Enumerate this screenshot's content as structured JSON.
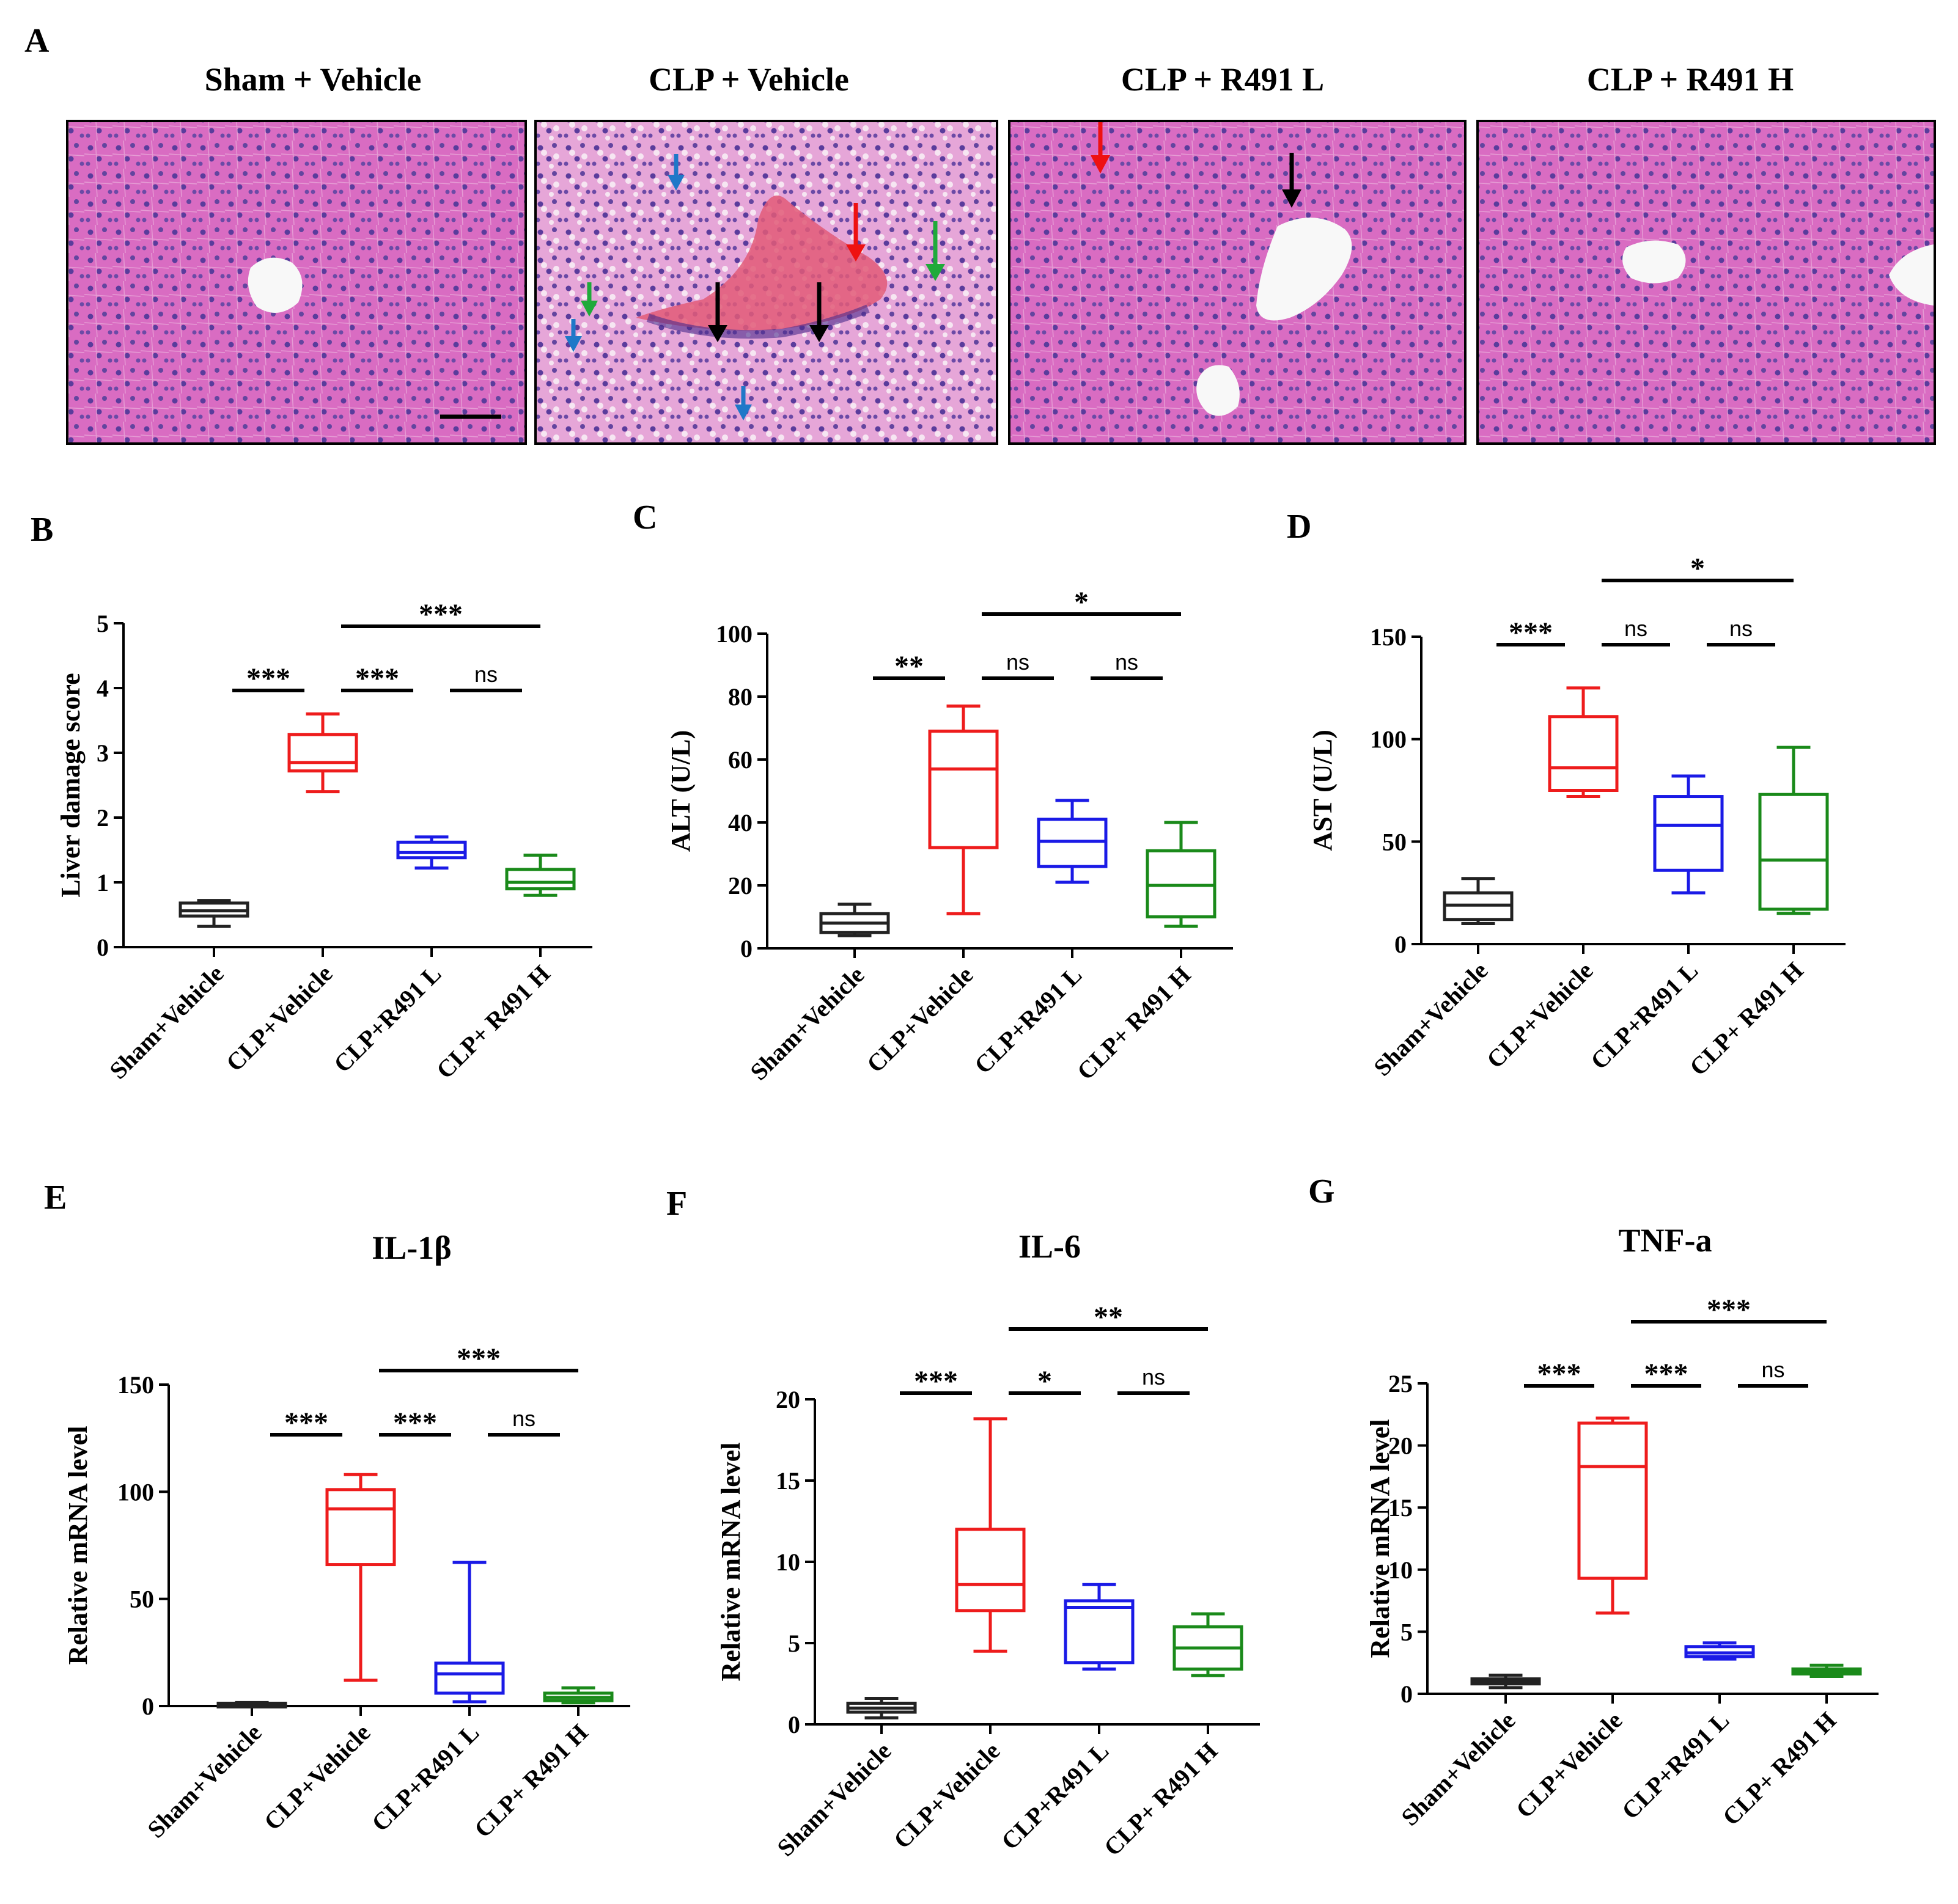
{
  "photos": {
    "letter": "A",
    "titles": [
      "Sham + Vehicle",
      "CLP + Vehicle",
      "CLP + R491 L",
      "CLP + R491 H"
    ]
  },
  "colors": {
    "groups": [
      "#222222",
      "#ee1c1c",
      "#1a1ae6",
      "#1a8a1a"
    ],
    "tissue": "#d86ac0",
    "arrows": {
      "black": "#000000",
      "red": "#ee1111",
      "green": "#1faa3a",
      "blue": "#1f78c8"
    }
  },
  "chart_data": [
    {
      "id": "B",
      "letter": "B",
      "type": "box",
      "title": "",
      "ylabel": "Liver damage score",
      "ylim": [
        0,
        5
      ],
      "yticks": [
        0,
        1,
        2,
        3,
        4,
        5
      ],
      "categories": [
        "Sham+Vehicle",
        "CLP+Vehicle",
        "CLP+R491 L",
        "CLP+ R491 H"
      ],
      "boxes": [
        {
          "min": 0.32,
          "q1": 0.48,
          "median": 0.56,
          "q3": 0.68,
          "max": 0.72
        },
        {
          "min": 2.4,
          "q1": 2.72,
          "median": 2.85,
          "q3": 3.28,
          "max": 3.6
        },
        {
          "min": 1.22,
          "q1": 1.38,
          "median": 1.46,
          "q3": 1.62,
          "max": 1.7
        },
        {
          "min": 0.8,
          "q1": 0.9,
          "median": 1.0,
          "q3": 1.2,
          "max": 1.42
        }
      ],
      "significance": [
        {
          "from": 0,
          "to": 1,
          "label": "***"
        },
        {
          "from": 1,
          "to": 2,
          "label": "***"
        },
        {
          "from": 2,
          "to": 3,
          "label": "ns"
        },
        {
          "from": 1,
          "to": 3,
          "label": "***"
        }
      ]
    },
    {
      "id": "C",
      "letter": "C",
      "type": "box",
      "title": "",
      "ylabel": "ALT (U/L)",
      "ylim": [
        0,
        100
      ],
      "yticks": [
        0,
        20,
        40,
        60,
        80,
        100
      ],
      "categories": [
        "Sham+Vehicle",
        "CLP+Vehicle",
        "CLP+R491 L",
        "CLP+ R491 H"
      ],
      "boxes": [
        {
          "min": 4,
          "q1": 5,
          "median": 8,
          "q3": 11,
          "max": 14
        },
        {
          "min": 11,
          "q1": 32,
          "median": 57,
          "q3": 69,
          "max": 77
        },
        {
          "min": 21,
          "q1": 26,
          "median": 34,
          "q3": 41,
          "max": 47
        },
        {
          "min": 7,
          "q1": 10,
          "median": 20,
          "q3": 31,
          "max": 40
        }
      ],
      "significance": [
        {
          "from": 0,
          "to": 1,
          "label": "**"
        },
        {
          "from": 1,
          "to": 2,
          "label": "ns"
        },
        {
          "from": 2,
          "to": 3,
          "label": "ns"
        },
        {
          "from": 1,
          "to": 3,
          "label": "*"
        }
      ]
    },
    {
      "id": "D",
      "letter": "D",
      "type": "box",
      "title": "",
      "ylabel": "AST (U/L)",
      "ylim": [
        0,
        150
      ],
      "yticks": [
        0,
        50,
        100,
        150
      ],
      "categories": [
        "Sham+Vehicle",
        "CLP+Vehicle",
        "CLP+R491 L",
        "CLP+ R491 H"
      ],
      "boxes": [
        {
          "min": 10,
          "q1": 12,
          "median": 19,
          "q3": 25,
          "max": 32
        },
        {
          "min": 72,
          "q1": 75,
          "median": 86,
          "q3": 111,
          "max": 125
        },
        {
          "min": 25,
          "q1": 36,
          "median": 58,
          "q3": 72,
          "max": 82
        },
        {
          "min": 15,
          "q1": 17,
          "median": 41,
          "q3": 73,
          "max": 96
        }
      ],
      "significance": [
        {
          "from": 0,
          "to": 1,
          "label": "***"
        },
        {
          "from": 1,
          "to": 2,
          "label": "ns"
        },
        {
          "from": 2,
          "to": 3,
          "label": "ns"
        },
        {
          "from": 1,
          "to": 3,
          "label": "*"
        }
      ]
    },
    {
      "id": "E",
      "letter": "E",
      "type": "box",
      "title": "IL-1β",
      "ylabel": "Relative mRNA level",
      "ylim": [
        0,
        150
      ],
      "yticks": [
        0,
        50,
        100,
        150
      ],
      "categories": [
        "Sham+Vehicle",
        "CLP+Vehicle",
        "CLP+R491 L",
        "CLP+ R491 H"
      ],
      "boxes": [
        {
          "min": 0.6,
          "q1": 0.8,
          "median": 1.0,
          "q3": 1.3,
          "max": 1.6
        },
        {
          "min": 12,
          "q1": 66,
          "median": 92,
          "q3": 101,
          "max": 108
        },
        {
          "min": 2,
          "q1": 6,
          "median": 15,
          "q3": 20,
          "max": 67
        },
        {
          "min": 1.5,
          "q1": 2.5,
          "median": 4,
          "q3": 6,
          "max": 8.5
        }
      ],
      "significance": [
        {
          "from": 0,
          "to": 1,
          "label": "***"
        },
        {
          "from": 1,
          "to": 2,
          "label": "***"
        },
        {
          "from": 2,
          "to": 3,
          "label": "ns"
        },
        {
          "from": 1,
          "to": 3,
          "label": "***"
        }
      ]
    },
    {
      "id": "F",
      "letter": "F",
      "type": "box",
      "title": "IL-6",
      "ylabel": "Relative mRNA level",
      "ylim": [
        0,
        20
      ],
      "yticks": [
        0,
        5,
        10,
        15,
        20
      ],
      "categories": [
        "Sham+Vehicle",
        "CLP+Vehicle",
        "CLP+R491 L",
        "CLP+ R491 H"
      ],
      "boxes": [
        {
          "min": 0.4,
          "q1": 0.75,
          "median": 1.0,
          "q3": 1.3,
          "max": 1.6
        },
        {
          "min": 4.5,
          "q1": 7.0,
          "median": 8.6,
          "q3": 12.0,
          "max": 18.8
        },
        {
          "min": 3.4,
          "q1": 3.8,
          "median": 7.2,
          "q3": 7.6,
          "max": 8.6
        },
        {
          "min": 3.0,
          "q1": 3.4,
          "median": 4.7,
          "q3": 6.0,
          "max": 6.8
        }
      ],
      "significance": [
        {
          "from": 0,
          "to": 1,
          "label": "***"
        },
        {
          "from": 1,
          "to": 2,
          "label": "*"
        },
        {
          "from": 2,
          "to": 3,
          "label": "ns"
        },
        {
          "from": 1,
          "to": 3,
          "label": "**"
        }
      ]
    },
    {
      "id": "G",
      "letter": "G",
      "type": "box",
      "title": "TNF-a",
      "ylabel": "Relative mRNA level",
      "ylim": [
        0,
        25
      ],
      "yticks": [
        0,
        5,
        10,
        15,
        20,
        25
      ],
      "categories": [
        "Sham+Vehicle",
        "CLP+Vehicle",
        "CLP+R491 L",
        "CLP+ R491 H"
      ],
      "boxes": [
        {
          "min": 0.5,
          "q1": 0.8,
          "median": 1.0,
          "q3": 1.2,
          "max": 1.5
        },
        {
          "min": 6.5,
          "q1": 9.3,
          "median": 18.3,
          "q3": 21.8,
          "max": 22.2
        },
        {
          "min": 2.8,
          "q1": 3.0,
          "median": 3.3,
          "q3": 3.8,
          "max": 4.1
        },
        {
          "min": 1.4,
          "q1": 1.6,
          "median": 1.8,
          "q3": 2.0,
          "max": 2.3
        }
      ],
      "significance": [
        {
          "from": 0,
          "to": 1,
          "label": "***"
        },
        {
          "from": 1,
          "to": 2,
          "label": "***"
        },
        {
          "from": 2,
          "to": 3,
          "label": "ns"
        },
        {
          "from": 1,
          "to": 3,
          "label": "***"
        }
      ]
    }
  ]
}
